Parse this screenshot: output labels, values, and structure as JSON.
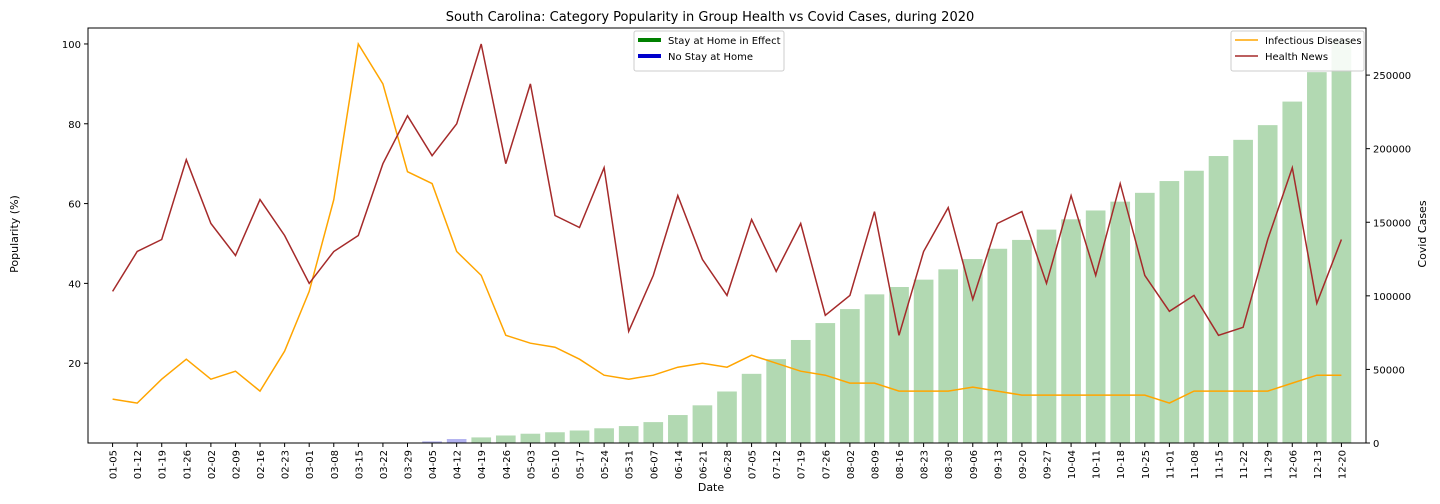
{
  "chart_data": {
    "type": "line",
    "title": "South Carolina: Category Popularity in Group Health vs Covid Cases, during 2020",
    "xlabel": "Date",
    "ylabel": "Popularity (%)",
    "y2label": "Covid Cases",
    "categories": [
      "01-05",
      "01-12",
      "01-19",
      "01-26",
      "02-02",
      "02-09",
      "02-16",
      "02-23",
      "03-01",
      "03-08",
      "03-15",
      "03-22",
      "03-29",
      "04-05",
      "04-12",
      "04-19",
      "04-26",
      "05-03",
      "05-10",
      "05-17",
      "05-24",
      "05-31",
      "06-07",
      "06-14",
      "06-21",
      "06-28",
      "07-05",
      "07-12",
      "07-19",
      "07-26",
      "08-02",
      "08-09",
      "08-16",
      "08-23",
      "08-30",
      "09-06",
      "09-13",
      "09-20",
      "09-27",
      "10-04",
      "10-11",
      "10-18",
      "10-25",
      "11-01",
      "11-08",
      "11-15",
      "11-22",
      "11-29",
      "12-06",
      "12-13",
      "12-20"
    ],
    "series": [
      {
        "name": "Infectious Diseases",
        "color": "#ffa500",
        "axis": "left",
        "values": [
          11,
          10,
          16,
          21,
          16,
          18,
          13,
          23,
          38,
          61,
          100,
          90,
          68,
          65,
          48,
          42,
          27,
          25,
          24,
          21,
          17,
          16,
          17,
          19,
          20,
          19,
          22,
          20,
          18,
          17,
          15,
          15,
          13,
          13,
          13,
          14,
          13,
          12,
          12,
          12,
          12,
          12,
          12,
          10,
          13,
          13,
          13,
          13,
          15,
          17,
          17
        ]
      },
      {
        "name": "Health News",
        "color": "#a52a2a",
        "axis": "left",
        "values": [
          38,
          48,
          51,
          71,
          55,
          47,
          61,
          52,
          40,
          48,
          52,
          70,
          82,
          72,
          80,
          100,
          70,
          90,
          57,
          54,
          69,
          28,
          42,
          62,
          46,
          37,
          56,
          43,
          55,
          32,
          37,
          58,
          27,
          48,
          59,
          36,
          55,
          58,
          40,
          62,
          42,
          65,
          42,
          33,
          37,
          27,
          29,
          51,
          69,
          35,
          51
        ]
      },
      {
        "name": "Covid Cases",
        "color": "#008000",
        "axis": "right",
        "kind": "bar",
        "values": [
          0,
          0,
          0,
          0,
          0,
          0,
          0,
          0,
          0,
          0,
          0,
          0,
          300,
          1100,
          2700,
          3800,
          5100,
          6300,
          7300,
          8500,
          10000,
          11500,
          14200,
          19000,
          25600,
          35000,
          47000,
          57000,
          70000,
          81500,
          91000,
          101000,
          106000,
          111000,
          118000,
          125000,
          132000,
          138000,
          145000,
          152000,
          158000,
          164000,
          170000,
          178000,
          185000,
          195000,
          206000,
          216000,
          232000,
          252000,
          274000
        ]
      }
    ],
    "stay_at_home": [
      false,
      false,
      false,
      false,
      false,
      false,
      false,
      false,
      false,
      false,
      false,
      false,
      false,
      true,
      true,
      false,
      false,
      false,
      false,
      false,
      false,
      false,
      false,
      false,
      false,
      false,
      false,
      false,
      false,
      false,
      false,
      false,
      false,
      false,
      false,
      false,
      false,
      false,
      false,
      false,
      false,
      false,
      false,
      false,
      false,
      false,
      false,
      false,
      false,
      false,
      false
    ],
    "ylim": [
      0,
      104
    ],
    "yticks": [
      20,
      40,
      60,
      80,
      100
    ],
    "y2lim": [
      0,
      282000
    ],
    "y2ticks": [
      0,
      50000,
      100000,
      150000,
      200000,
      250000
    ],
    "legends": [
      {
        "position": "top-center",
        "items": [
          {
            "label": "Stay at Home in Effect",
            "color": "#008000"
          },
          {
            "label": "No Stay at Home",
            "color": "#0000cc"
          }
        ]
      },
      {
        "position": "top-right",
        "items": [
          {
            "label": "Infectious Diseases",
            "color": "#ffa500"
          },
          {
            "label": "Health News",
            "color": "#a52a2a"
          }
        ]
      }
    ],
    "grid": false
  }
}
